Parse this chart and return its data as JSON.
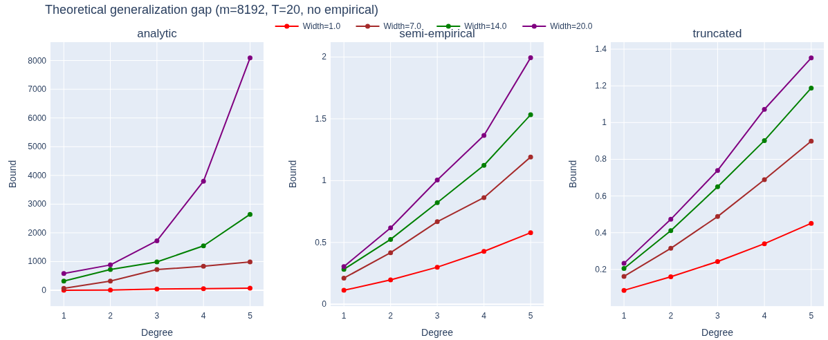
{
  "chart_data": [
    {
      "type": "line",
      "title": "analytic",
      "annotations": [
        "Theoretical generalization gap (m=8192, T=20, no empirical)"
      ],
      "xlabel": "Degree",
      "ylabel": "Bound",
      "x": [
        1,
        2,
        3,
        4,
        5
      ],
      "xlim": [
        0.714,
        5.29
      ],
      "xticks": [
        1,
        2,
        3,
        4,
        5
      ],
      "ylim": [
        -553,
        8640
      ],
      "yticks": [
        0,
        1000,
        2000,
        3000,
        4000,
        5000,
        6000,
        7000,
        8000
      ],
      "grid": true,
      "legend": false,
      "marker": "circle",
      "line_style": "solid",
      "series": [
        {
          "color": "#ff0000",
          "values": [
            0,
            5,
            40,
            56,
            72
          ]
        },
        {
          "color": "#a52a2a",
          "values": [
            64,
            320,
            721,
            834,
            986
          ]
        },
        {
          "color": "#008000",
          "values": [
            320,
            721,
            986,
            1546,
            2644
          ]
        },
        {
          "color": "#800080",
          "values": [
            585,
            882,
            1723,
            3798,
            8090
          ]
        }
      ]
    },
    {
      "type": "line",
      "title": "semi-empirical",
      "xlabel": "Degree",
      "ylabel": "Bound",
      "x": [
        1,
        2,
        3,
        4,
        5
      ],
      "xlim": [
        0.716,
        5.28
      ],
      "xticks": [
        1,
        2,
        3,
        4,
        5
      ],
      "ylim": [
        -0.015,
        2.12
      ],
      "yticks": [
        0,
        0.5,
        1,
        1.5,
        2
      ],
      "grid": true,
      "legend": "top",
      "marker": "circle",
      "line_style": "solid",
      "series": [
        {
          "name": "Width=1.0",
          "color": "#ff0000",
          "values": [
            0.113,
            0.197,
            0.3,
            0.428,
            0.579
          ]
        },
        {
          "name": "Width=7.0",
          "color": "#a52a2a",
          "values": [
            0.212,
            0.417,
            0.668,
            0.863,
            1.191
          ]
        },
        {
          "name": "Width=14.0",
          "color": "#008000",
          "values": [
            0.283,
            0.525,
            0.822,
            1.124,
            1.533
          ]
        },
        {
          "name": "Width=20.0",
          "color": "#800080",
          "values": [
            0.305,
            0.618,
            1.005,
            1.366,
            1.994
          ]
        }
      ]
    },
    {
      "type": "line",
      "title": "truncated",
      "xlabel": "Degree",
      "ylabel": "Bound",
      "x": [
        1,
        2,
        3,
        4,
        5
      ],
      "xlim": [
        0.718,
        5.27
      ],
      "xticks": [
        1,
        2,
        3,
        4,
        5
      ],
      "ylim": [
        0,
        1.438
      ],
      "yticks": [
        0.2,
        0.4,
        0.6,
        0.8,
        1,
        1.2,
        1.4
      ],
      "grid": true,
      "legend": false,
      "marker": "circle",
      "line_style": "solid",
      "series": [
        {
          "color": "#ff0000",
          "values": [
            0.086,
            0.16,
            0.243,
            0.34,
            0.451
          ]
        },
        {
          "color": "#a52a2a",
          "values": [
            0.162,
            0.315,
            0.488,
            0.689,
            0.899
          ]
        },
        {
          "color": "#008000",
          "values": [
            0.205,
            0.411,
            0.65,
            0.902,
            1.188
          ]
        },
        {
          "color": "#800080",
          "values": [
            0.233,
            0.473,
            0.739,
            1.072,
            1.352
          ]
        }
      ]
    }
  ]
}
